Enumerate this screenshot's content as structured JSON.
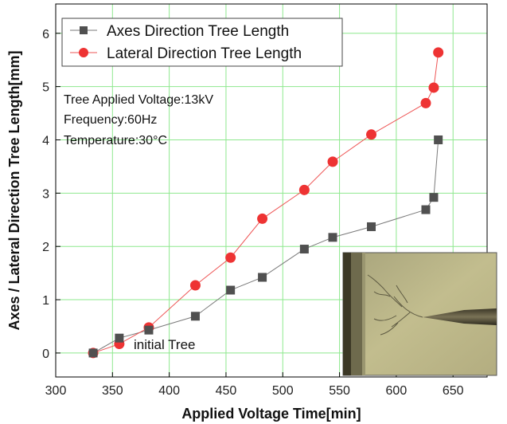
{
  "chart_data": {
    "type": "line",
    "title": "",
    "xlabel": "Applied Voltage Time[min]",
    "ylabel": "Axes / Lateral Direction Tree Length[mm]",
    "xlim": [
      300,
      680
    ],
    "ylim": [
      -0.45,
      6.55
    ],
    "x_ticks": [
      300,
      350,
      400,
      450,
      500,
      550,
      600,
      650
    ],
    "y_ticks": [
      0,
      1,
      2,
      3,
      4,
      5,
      6
    ],
    "grid": true,
    "grid_color": "#8ee88e",
    "legend_position": "top-left",
    "series": [
      {
        "name": "Axes Direction Tree Length",
        "marker": "square",
        "color": "#505050",
        "line_color": "#7a7a7a",
        "points": [
          {
            "x": 333,
            "y": 0.0
          },
          {
            "x": 356,
            "y": 0.28
          },
          {
            "x": 382,
            "y": 0.43
          },
          {
            "x": 423,
            "y": 0.69
          },
          {
            "x": 454,
            "y": 1.18
          },
          {
            "x": 482,
            "y": 1.42
          },
          {
            "x": 519,
            "y": 1.95
          },
          {
            "x": 544,
            "y": 2.17
          },
          {
            "x": 578,
            "y": 2.37
          },
          {
            "x": 626,
            "y": 2.69
          },
          {
            "x": 633,
            "y": 2.92
          },
          {
            "x": 637,
            "y": 4.0
          }
        ]
      },
      {
        "name": "Lateral Direction Tree Length",
        "marker": "circle",
        "color": "#ee3333",
        "line_color": "#ee5555",
        "points": [
          {
            "x": 333,
            "y": 0.0
          },
          {
            "x": 356,
            "y": 0.17
          },
          {
            "x": 382,
            "y": 0.48
          },
          {
            "x": 423,
            "y": 1.27
          },
          {
            "x": 454,
            "y": 1.79
          },
          {
            "x": 482,
            "y": 2.52
          },
          {
            "x": 519,
            "y": 3.06
          },
          {
            "x": 544,
            "y": 3.59
          },
          {
            "x": 578,
            "y": 4.1
          },
          {
            "x": 626,
            "y": 4.69
          },
          {
            "x": 633,
            "y": 4.98
          },
          {
            "x": 637,
            "y": 5.64
          }
        ]
      }
    ],
    "annotations": [
      "Tree Applied Voltage:13kV",
      "Frequency:60Hz",
      "Temperature:30°C"
    ],
    "point_label": "initial Tree",
    "inset_image": "micrograph of needle electrode with electrical tree"
  }
}
